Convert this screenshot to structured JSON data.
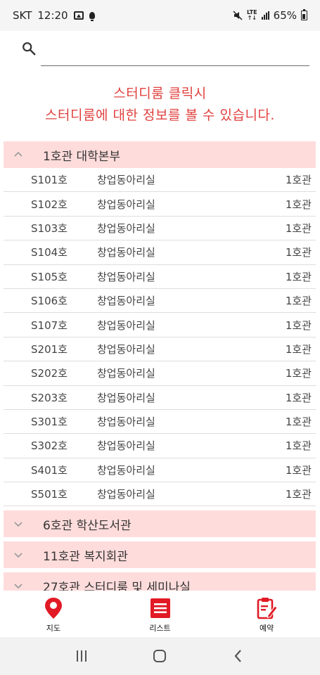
{
  "status_bar": {
    "carrier": "SKT",
    "time": "12:20",
    "network": "LTE",
    "battery": "65%",
    "icons": [
      "image-icon",
      "bulb-icon",
      "mute-icon",
      "lte-icon",
      "signal-icon",
      "battery-icon"
    ]
  },
  "search": {
    "placeholder": "",
    "value": ""
  },
  "notice": {
    "line1": "스터디룸 클릭시",
    "line2": "스터디룸에 대한 정보를 볼 수 있습니다."
  },
  "groups": [
    {
      "label": "1호관 대학본부",
      "expanded": true,
      "rows": [
        {
          "room": "S101호",
          "type": "창업동아리실",
          "building": "1호관"
        },
        {
          "room": "S102호",
          "type": "창업동아리실",
          "building": "1호관"
        },
        {
          "room": "S103호",
          "type": "창업동아리실",
          "building": "1호관"
        },
        {
          "room": "S104호",
          "type": "창업동아리실",
          "building": "1호관"
        },
        {
          "room": "S105호",
          "type": "창업동아리실",
          "building": "1호관"
        },
        {
          "room": "S106호",
          "type": "창업동아리실",
          "building": "1호관"
        },
        {
          "room": "S107호",
          "type": "창업동아리실",
          "building": "1호관"
        },
        {
          "room": "S201호",
          "type": "창업동아리실",
          "building": "1호관"
        },
        {
          "room": "S202호",
          "type": "창업동아리실",
          "building": "1호관"
        },
        {
          "room": "S203호",
          "type": "창업동아리실",
          "building": "1호관"
        },
        {
          "room": "S301호",
          "type": "창업동아리실",
          "building": "1호관"
        },
        {
          "room": "S302호",
          "type": "창업동아리실",
          "building": "1호관"
        },
        {
          "room": "S401호",
          "type": "창업동아리실",
          "building": "1호관"
        },
        {
          "room": "S501호",
          "type": "창업동아리실",
          "building": "1호관"
        }
      ]
    },
    {
      "label": "6호관 학산도서관",
      "expanded": false
    },
    {
      "label": "11호관 복지회관",
      "expanded": false
    },
    {
      "label": "27호관 스터디룸 및 세미나실",
      "expanded": false
    }
  ],
  "bottom_nav": {
    "map_label": "지도",
    "list_label": "리스트",
    "reserve_label": "예약"
  },
  "colors": {
    "accent": "#e0413f",
    "group_header_bg": "#ffdcdc",
    "nav_icon": "#e11a25"
  }
}
